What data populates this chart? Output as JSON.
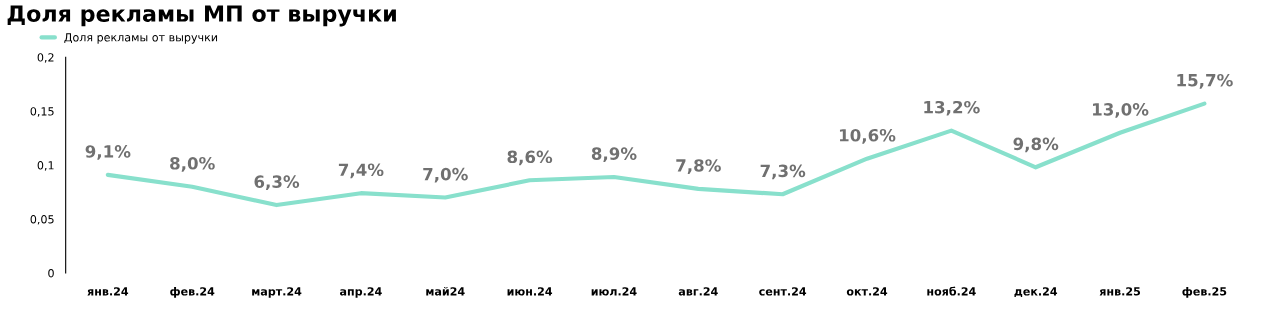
{
  "chart_data": {
    "type": "line",
    "title": "Доля рекламы МП от выручки",
    "categories": [
      "янв.24",
      "фев.24",
      "март.24",
      "апр.24",
      "май24",
      "июн.24",
      "июл.24",
      "авг.24",
      "сент.24",
      "окт.24",
      "нояб.24",
      "дек.24",
      "янв.25",
      "фев.25"
    ],
    "series": [
      {
        "name": "Доля рекламы от выручки",
        "color": "#88e0cc",
        "values": [
          0.091,
          0.08,
          0.063,
          0.074,
          0.07,
          0.086,
          0.089,
          0.078,
          0.073,
          0.106,
          0.132,
          0.098,
          0.13,
          0.157
        ],
        "value_labels": [
          "9,1%",
          "8,0%",
          "6,3%",
          "7,4%",
          "7,0%",
          "8,6%",
          "8,9%",
          "7,8%",
          "7,3%",
          "10,6%",
          "13,2%",
          "9,8%",
          "13,0%",
          "15,7%"
        ]
      }
    ],
    "ylim": [
      0,
      0.2
    ],
    "yticks": [
      0,
      {
        "value": 0.05,
        "label": "0,05"
      },
      {
        "value": 0.1,
        "label": "0,1"
      },
      {
        "value": 0.15,
        "label": "0,15"
      },
      {
        "value": 0.2,
        "label": "0,2"
      }
    ],
    "grid": false,
    "legend": "top left",
    "marker": "none",
    "line_style": "solid"
  }
}
